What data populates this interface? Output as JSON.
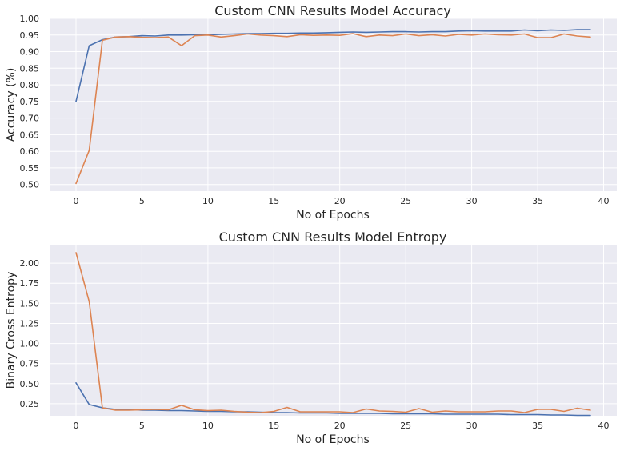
{
  "chart_data": [
    {
      "type": "line",
      "title": "Custom CNN Results Model Accuracy",
      "xlabel": "No of Epochs",
      "ylabel": "Accuracy (%)",
      "xlim": [
        -2,
        41
      ],
      "ylim": [
        0.48,
        1.0
      ],
      "xticks": [
        0,
        5,
        10,
        15,
        20,
        25,
        30,
        35,
        40
      ],
      "yticks": [
        0.5,
        0.55,
        0.6,
        0.65,
        0.7,
        0.75,
        0.8,
        0.85,
        0.9,
        0.95,
        1.0
      ],
      "ytick_labels": [
        "0.50",
        "0.55",
        "0.60",
        "0.65",
        "0.70",
        "0.75",
        "0.80",
        "0.85",
        "0.90",
        "0.95",
        "1.00"
      ],
      "grid": true,
      "x": [
        0,
        1,
        2,
        3,
        4,
        5,
        6,
        7,
        8,
        9,
        10,
        11,
        12,
        13,
        14,
        15,
        16,
        17,
        18,
        19,
        20,
        21,
        22,
        23,
        24,
        25,
        26,
        27,
        28,
        29,
        30,
        31,
        32,
        33,
        34,
        35,
        36,
        37,
        38,
        39
      ],
      "series": [
        {
          "color": "#4c72b0",
          "values": [
            0.75,
            0.918,
            0.936,
            0.944,
            0.945,
            0.948,
            0.947,
            0.95,
            0.95,
            0.951,
            0.951,
            0.952,
            0.953,
            0.954,
            0.954,
            0.955,
            0.955,
            0.956,
            0.956,
            0.957,
            0.958,
            0.959,
            0.958,
            0.959,
            0.96,
            0.96,
            0.959,
            0.96,
            0.96,
            0.962,
            0.963,
            0.962,
            0.962,
            0.962,
            0.965,
            0.963,
            0.965,
            0.964,
            0.966,
            0.966
          ]
        },
        {
          "color": "#dd8452",
          "values": [
            0.503,
            0.603,
            0.934,
            0.944,
            0.945,
            0.943,
            0.942,
            0.944,
            0.918,
            0.948,
            0.95,
            0.944,
            0.948,
            0.953,
            0.95,
            0.948,
            0.945,
            0.951,
            0.949,
            0.95,
            0.949,
            0.954,
            0.945,
            0.95,
            0.948,
            0.953,
            0.948,
            0.951,
            0.947,
            0.952,
            0.95,
            0.953,
            0.951,
            0.95,
            0.953,
            0.942,
            0.942,
            0.953,
            0.947,
            0.944
          ]
        }
      ]
    },
    {
      "type": "line",
      "title": "Custom CNN Results Model Entropy",
      "xlabel": "No of Epochs",
      "ylabel": "Binary Cross Entropy",
      "xlim": [
        -2,
        41
      ],
      "ylim": [
        0.1,
        2.22
      ],
      "xticks": [
        0,
        5,
        10,
        15,
        20,
        25,
        30,
        35,
        40
      ],
      "yticks": [
        0.25,
        0.5,
        0.75,
        1.0,
        1.25,
        1.5,
        1.75,
        2.0
      ],
      "ytick_labels": [
        "0.25",
        "0.50",
        "0.75",
        "1.00",
        "1.25",
        "1.50",
        "1.75",
        "2.00"
      ],
      "grid": true,
      "x": [
        0,
        1,
        2,
        3,
        4,
        5,
        6,
        7,
        8,
        9,
        10,
        11,
        12,
        13,
        14,
        15,
        16,
        17,
        18,
        19,
        20,
        21,
        22,
        23,
        24,
        25,
        26,
        27,
        28,
        29,
        30,
        31,
        32,
        33,
        34,
        35,
        36,
        37,
        38,
        39
      ],
      "series": [
        {
          "color": "#4c72b0",
          "values": [
            0.51,
            0.24,
            0.2,
            0.18,
            0.18,
            0.17,
            0.17,
            0.165,
            0.165,
            0.16,
            0.155,
            0.155,
            0.15,
            0.15,
            0.145,
            0.14,
            0.14,
            0.135,
            0.135,
            0.135,
            0.13,
            0.13,
            0.13,
            0.13,
            0.125,
            0.125,
            0.125,
            0.125,
            0.12,
            0.12,
            0.12,
            0.12,
            0.12,
            0.115,
            0.115,
            0.115,
            0.11,
            0.11,
            0.105,
            0.105
          ]
        },
        {
          "color": "#dd8452",
          "values": [
            2.13,
            1.52,
            0.2,
            0.17,
            0.17,
            0.175,
            0.18,
            0.175,
            0.23,
            0.175,
            0.165,
            0.17,
            0.155,
            0.145,
            0.14,
            0.155,
            0.205,
            0.15,
            0.15,
            0.15,
            0.15,
            0.14,
            0.185,
            0.16,
            0.155,
            0.145,
            0.19,
            0.145,
            0.16,
            0.15,
            0.15,
            0.15,
            0.16,
            0.16,
            0.14,
            0.18,
            0.18,
            0.155,
            0.195,
            0.17
          ]
        }
      ]
    }
  ]
}
